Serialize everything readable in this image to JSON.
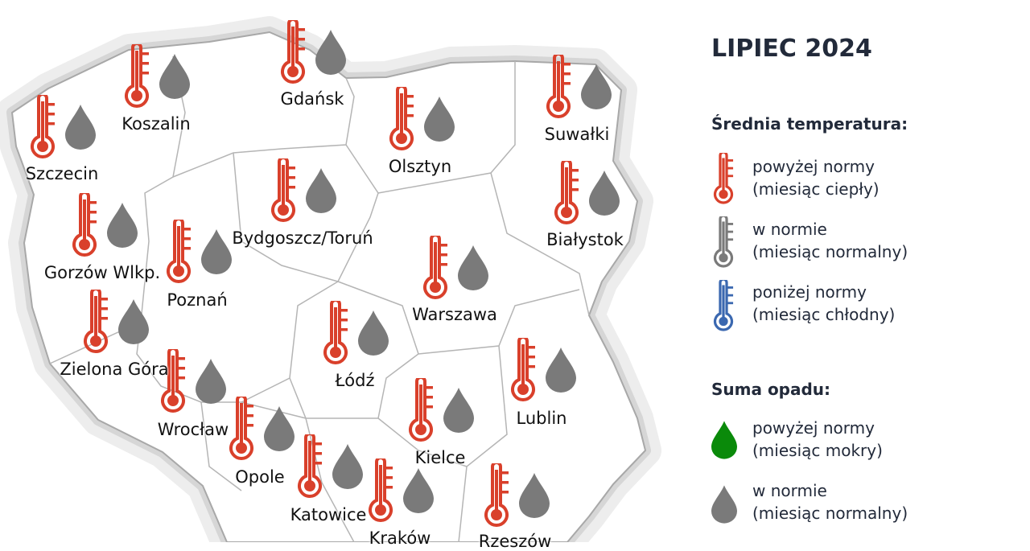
{
  "legend": {
    "title": "LIPIEC 2024",
    "temperature_heading": "Średnia temperatura:",
    "temperature_items": [
      {
        "line1": "powyżej normy",
        "line2": "(miesiąc ciepły)",
        "color": "#d9402b",
        "icon": "thermometer-icon"
      },
      {
        "line1": "w normie",
        "line2": "(miesiąc normalny)",
        "color": "#7a7a7a",
        "icon": "thermometer-icon"
      },
      {
        "line1": "poniżej normy",
        "line2": "(miesiąc chłodny)",
        "color": "#3b68b0",
        "icon": "thermometer-icon"
      }
    ],
    "precip_heading": "Suma opadu:",
    "precip_items": [
      {
        "line1": "powyżej normy",
        "line2": "(miesiąc mokry)",
        "color": "#0a8a0a",
        "icon": "drop-icon"
      },
      {
        "line1": "w normie",
        "line2": "(miesiąc normalny)",
        "color": "#7a7a7a",
        "icon": "drop-icon"
      }
    ]
  },
  "stations": [
    {
      "name": "Szczecin",
      "temperature": "powyżej normy",
      "precipitation": "w normie"
    },
    {
      "name": "Koszalin",
      "temperature": "powyżej normy",
      "precipitation": "w normie"
    },
    {
      "name": "Gdańsk",
      "temperature": "powyżej normy",
      "precipitation": "w normie"
    },
    {
      "name": "Olsztyn",
      "temperature": "powyżej normy",
      "precipitation": "w normie"
    },
    {
      "name": "Suwałki",
      "temperature": "powyżej normy",
      "precipitation": "w normie"
    },
    {
      "name": "Bydgoszcz/Toruń",
      "temperature": "powyżej normy",
      "precipitation": "w normie"
    },
    {
      "name": "Białystok",
      "temperature": "powyżej normy",
      "precipitation": "w normie"
    },
    {
      "name": "Gorzów Wlkp.",
      "temperature": "powyżej normy",
      "precipitation": "w normie"
    },
    {
      "name": "Poznań",
      "temperature": "powyżej normy",
      "precipitation": "w normie"
    },
    {
      "name": "Warszawa",
      "temperature": "powyżej normy",
      "precipitation": "w normie"
    },
    {
      "name": "Zielona Góra",
      "temperature": "powyżej normy",
      "precipitation": "w normie"
    },
    {
      "name": "Łódź",
      "temperature": "powyżej normy",
      "precipitation": "w normie"
    },
    {
      "name": "Wrocław",
      "temperature": "powyżej normy",
      "precipitation": "w normie"
    },
    {
      "name": "Lublin",
      "temperature": "powyżej normy",
      "precipitation": "w normie"
    },
    {
      "name": "Kielce",
      "temperature": "powyżej normy",
      "precipitation": "w normie"
    },
    {
      "name": "Opole",
      "temperature": "powyżej normy",
      "precipitation": "w normie"
    },
    {
      "name": "Katowice",
      "temperature": "powyżej normy",
      "precipitation": "w normie"
    },
    {
      "name": "Kraków",
      "temperature": "powyżej normy",
      "precipitation": "w normie"
    },
    {
      "name": "Rzeszów",
      "temperature": "powyżej normy",
      "precipitation": "w normie"
    }
  ]
}
